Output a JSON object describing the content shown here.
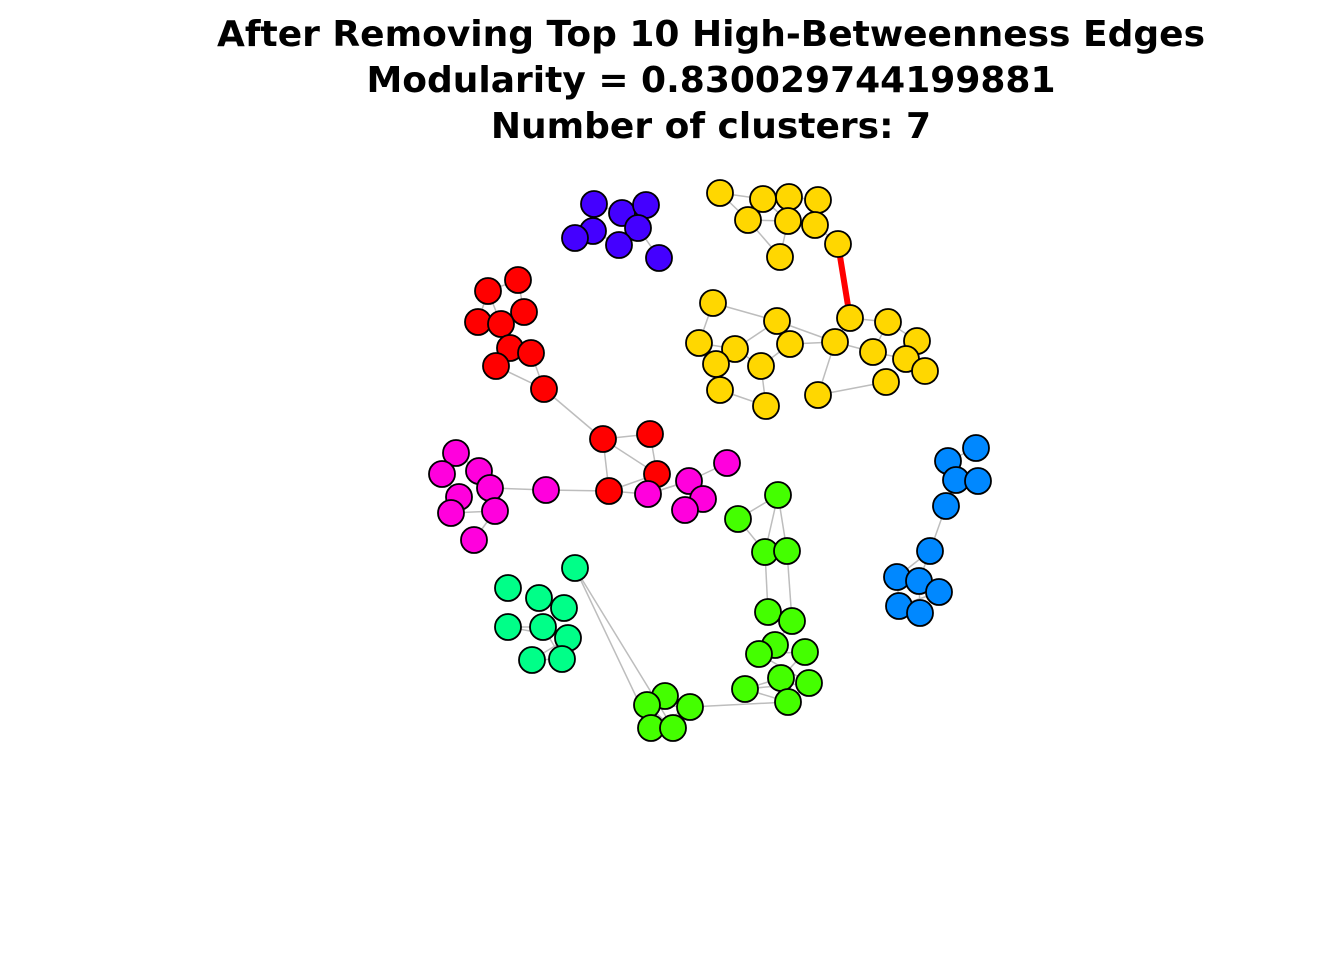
{
  "title": {
    "line1": "After Removing Top 10 High-Betweenness Edges",
    "line2": "Modularity = 0.830029744199881",
    "line3": "Number of clusters: 7"
  },
  "graph": {
    "edge_color": "#bdbdbd",
    "highlight_edge_color": "#ff0000",
    "node_border_color": "#000000",
    "clusters": [
      {
        "name": "purple",
        "color": "#4400ff"
      },
      {
        "name": "yellow",
        "color": "#ffd700"
      },
      {
        "name": "red",
        "color": "#ff0000"
      },
      {
        "name": "magenta",
        "color": "#ff00dd"
      },
      {
        "name": "blue",
        "color": "#0088ff"
      },
      {
        "name": "green",
        "color": "#44ff00"
      },
      {
        "name": "teal",
        "color": "#00ff88"
      }
    ]
  }
}
